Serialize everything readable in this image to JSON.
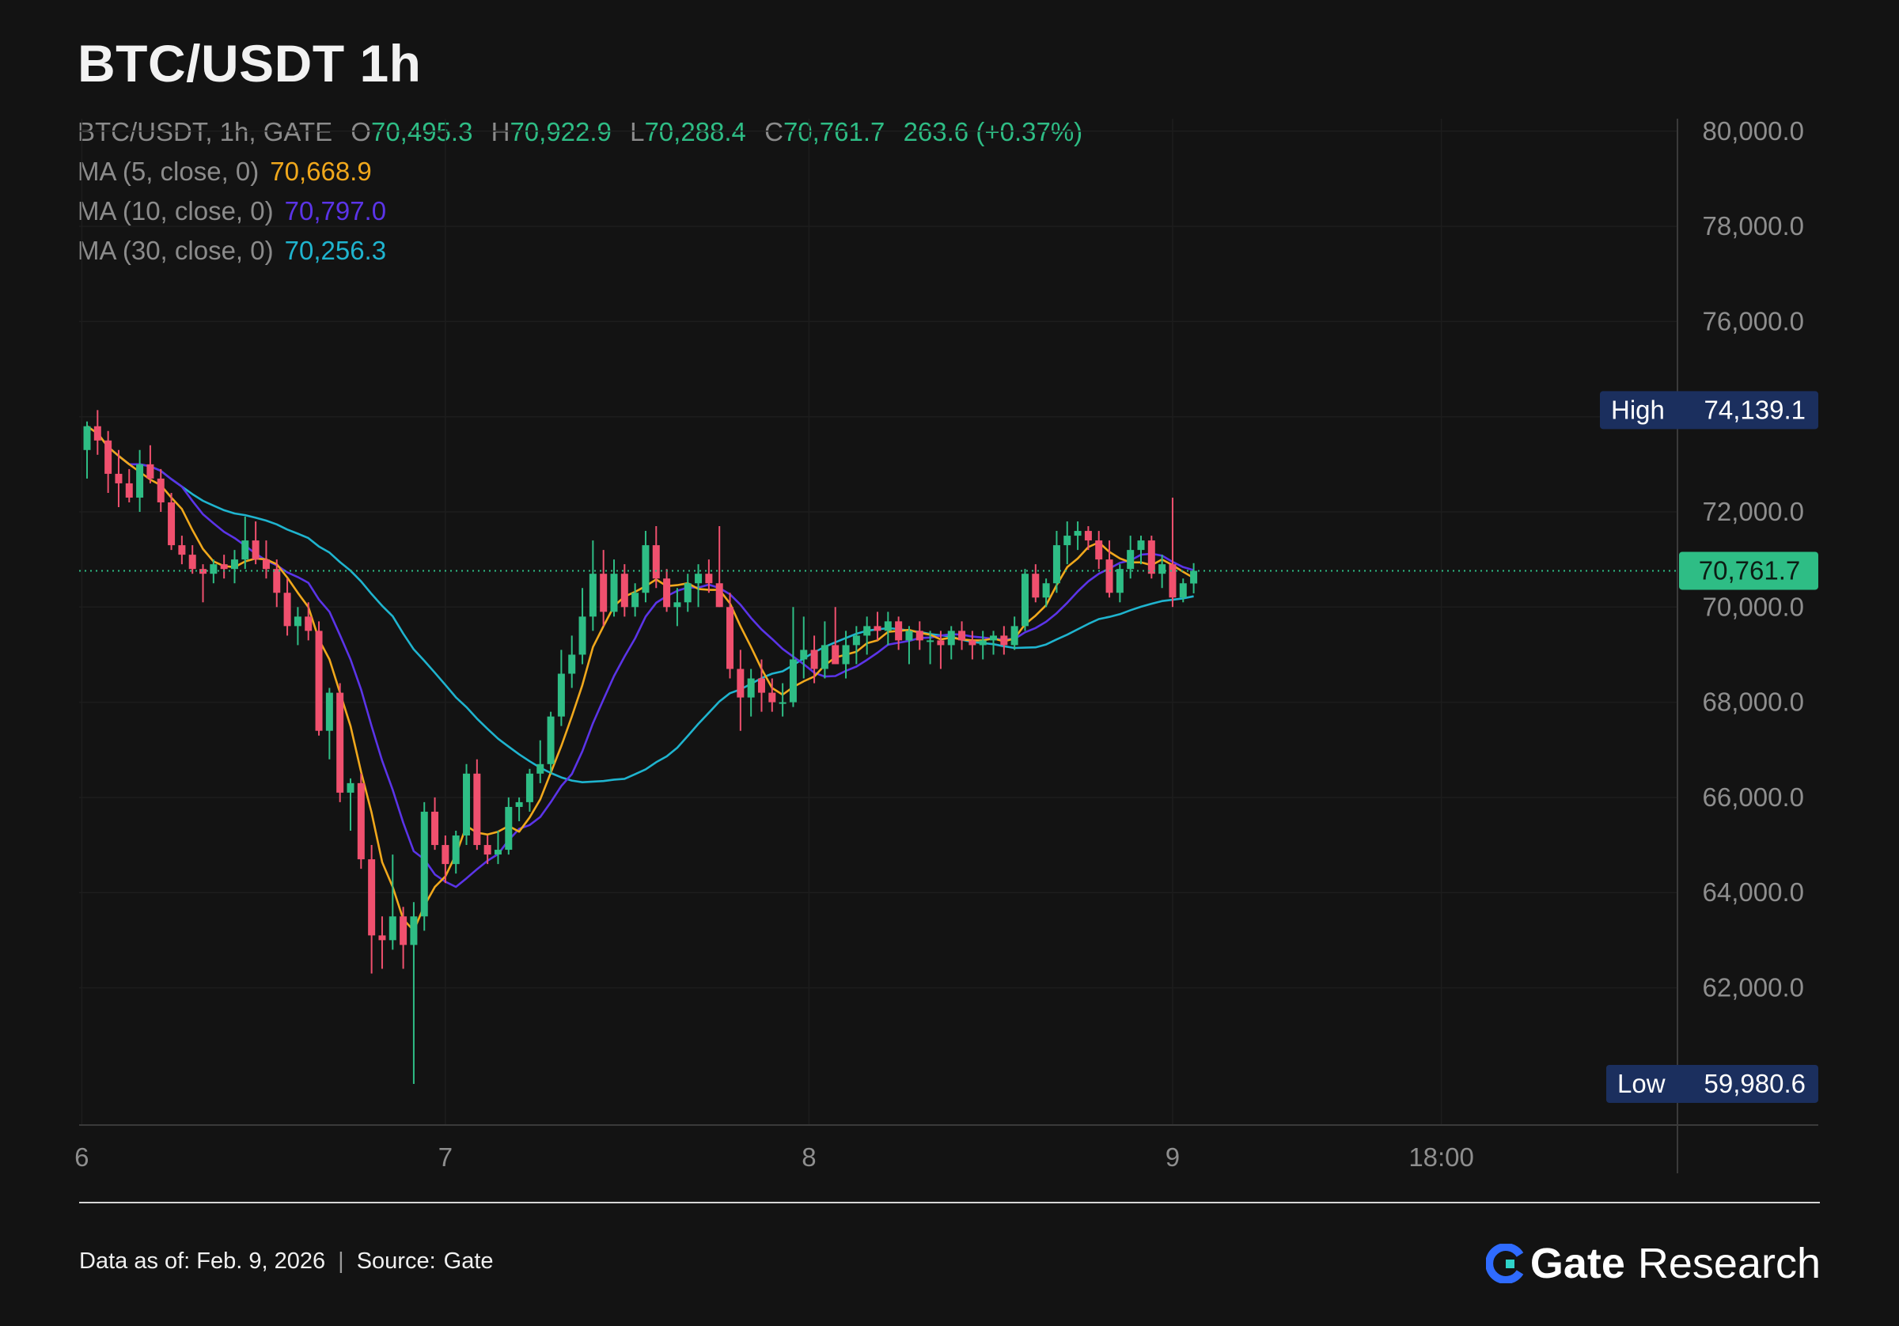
{
  "title": "BTC/USDT 1h",
  "legend": {
    "symbol": "BTC/USDT, 1h, GATE",
    "open_label": "O",
    "open_value": "70,495.3",
    "high_label": "H",
    "high_value": "70,922.9",
    "low_label": "L",
    "low_value": "70,288.4",
    "close_label": "C",
    "close_value": "70,761.7",
    "change": "263.6 (+0.37%)",
    "ma5_label": "MA (5, close, 0)",
    "ma5_value": "70,668.9",
    "ma10_label": "MA (10, close, 0)",
    "ma10_value": "70,797.0",
    "ma30_label": "MA (30, close, 0)",
    "ma30_value": "70,256.3"
  },
  "colors": {
    "up": "#2ebd85",
    "down": "#f0506e",
    "ma5": "#f0a81c",
    "ma10": "#5b34e8",
    "ma30": "#1fb4cf",
    "marker_bg": "#1b2f5e",
    "price_tag": "#2ebd85"
  },
  "markers": {
    "high_label": "High",
    "high_value": "74,139.1",
    "low_label": "Low",
    "low_value": "59,980.6",
    "last_price": "70,761.7"
  },
  "footer": {
    "data_as_of": "Data as of: Feb. 9, 2026",
    "source_label": "Source:",
    "source_value": "Gate",
    "brand": "Gate",
    "brand_sub": "Research"
  },
  "chart_data": {
    "type": "candlestick",
    "interval": "1h",
    "ylim": [
      59000,
      81000
    ],
    "y_ticks": [
      62000,
      64000,
      66000,
      68000,
      70000,
      72000,
      74000,
      76000,
      78000,
      80000
    ],
    "y_tick_labels": [
      "62,000.0",
      "64,000.0",
      "66,000.0",
      "68,000.0",
      "70,000.0",
      "72,000.0",
      "74,000.0",
      "76,000.0",
      "78,000.0",
      "80,000.0"
    ],
    "x_tick_labels": [
      "6",
      "7",
      "8",
      "9",
      "18:00"
    ],
    "x_tick_positions": [
      -0.5,
      34,
      68.5,
      103,
      128.5
    ],
    "high": 74139.1,
    "low": 59980.6,
    "last_close": 70761.7,
    "candles": [
      [
        73300,
        73900,
        72700,
        73800
      ],
      [
        73800,
        74139.1,
        73200,
        73500
      ],
      [
        73500,
        73700,
        72400,
        72800
      ],
      [
        72800,
        73300,
        72100,
        72600
      ],
      [
        72600,
        72900,
        72200,
        72300
      ],
      [
        72300,
        73300,
        72000,
        73000
      ],
      [
        73000,
        73400,
        72600,
        72700
      ],
      [
        72700,
        72900,
        72000,
        72200
      ],
      [
        72200,
        72400,
        71200,
        71300
      ],
      [
        71300,
        71500,
        70900,
        71100
      ],
      [
        71100,
        71300,
        70700,
        70800
      ],
      [
        70800,
        70900,
        70100,
        70700
      ],
      [
        70700,
        71000,
        70500,
        70900
      ],
      [
        70900,
        71100,
        70600,
        70800
      ],
      [
        70800,
        71200,
        70500,
        71000
      ],
      [
        71000,
        71900,
        70800,
        71400
      ],
      [
        71400,
        71800,
        70900,
        71000
      ],
      [
        71000,
        71400,
        70600,
        70800
      ],
      [
        70800,
        71000,
        70000,
        70300
      ],
      [
        70300,
        70600,
        69400,
        69600
      ],
      [
        69600,
        70000,
        69200,
        69800
      ],
      [
        69800,
        70100,
        69300,
        69500
      ],
      [
        69500,
        69700,
        67300,
        67400
      ],
      [
        67400,
        68300,
        66800,
        68200
      ],
      [
        68200,
        68400,
        65900,
        66100
      ],
      [
        66100,
        66400,
        65300,
        66300
      ],
      [
        66300,
        66500,
        64500,
        64700
      ],
      [
        64700,
        65000,
        62300,
        63100
      ],
      [
        63100,
        63500,
        62400,
        63000
      ],
      [
        63000,
        64800,
        62800,
        63500
      ],
      [
        63500,
        63700,
        62400,
        62900
      ],
      [
        62900,
        63800,
        59980.6,
        63500
      ],
      [
        63500,
        65900,
        63200,
        65700
      ],
      [
        65700,
        66000,
        64900,
        65000
      ],
      [
        65000,
        65200,
        64200,
        64600
      ],
      [
        64600,
        65300,
        64400,
        65200
      ],
      [
        65200,
        66700,
        65000,
        66500
      ],
      [
        66500,
        66800,
        64900,
        65000
      ],
      [
        65000,
        65200,
        64600,
        64800
      ],
      [
        64800,
        65300,
        64600,
        64900
      ],
      [
        64900,
        66000,
        64800,
        65800
      ],
      [
        65800,
        66000,
        65500,
        65900
      ],
      [
        65900,
        66600,
        65700,
        66500
      ],
      [
        66500,
        67200,
        66300,
        66700
      ],
      [
        66700,
        67800,
        66500,
        67700
      ],
      [
        67700,
        69100,
        67500,
        68600
      ],
      [
        68600,
        69400,
        68300,
        69000
      ],
      [
        69000,
        70400,
        68800,
        69800
      ],
      [
        69800,
        71400,
        69500,
        70700
      ],
      [
        70700,
        71200,
        69600,
        69900
      ],
      [
        69900,
        71000,
        69800,
        70700
      ],
      [
        70700,
        70900,
        69800,
        70000
      ],
      [
        70000,
        70500,
        69800,
        70300
      ],
      [
        70300,
        71600,
        70100,
        71300
      ],
      [
        71300,
        71700,
        70400,
        70600
      ],
      [
        70600,
        70800,
        69900,
        70000
      ],
      [
        70000,
        70400,
        69600,
        70100
      ],
      [
        70100,
        70700,
        69900,
        70500
      ],
      [
        70500,
        70900,
        70000,
        70700
      ],
      [
        70700,
        71000,
        70300,
        70500
      ],
      [
        70500,
        71700,
        70000,
        70000
      ],
      [
        70000,
        70300,
        68500,
        68700
      ],
      [
        68700,
        69100,
        67400,
        68100
      ],
      [
        68100,
        68700,
        67700,
        68500
      ],
      [
        68500,
        68900,
        67800,
        68200
      ],
      [
        68200,
        68500,
        67800,
        68000
      ],
      [
        68000,
        68400,
        67700,
        68000
      ],
      [
        68000,
        70000,
        67900,
        68900
      ],
      [
        68900,
        69800,
        68500,
        69100
      ],
      [
        69100,
        69400,
        68400,
        68700
      ],
      [
        68700,
        69700,
        68500,
        69200
      ],
      [
        69200,
        70000,
        68800,
        68800
      ],
      [
        68800,
        69500,
        68500,
        69200
      ],
      [
        69200,
        69600,
        68800,
        69400
      ],
      [
        69400,
        69800,
        69000,
        69600
      ],
      [
        69600,
        69900,
        69300,
        69500
      ],
      [
        69500,
        69900,
        69200,
        69700
      ],
      [
        69700,
        69800,
        69100,
        69300
      ],
      [
        69300,
        69600,
        68800,
        69500
      ],
      [
        69500,
        69700,
        69100,
        69300
      ],
      [
        69300,
        69500,
        68800,
        69300
      ],
      [
        69300,
        69500,
        68700,
        69200
      ],
      [
        69200,
        69600,
        68900,
        69500
      ],
      [
        69500,
        69700,
        69100,
        69300
      ],
      [
        69300,
        69500,
        68900,
        69200
      ],
      [
        69200,
        69500,
        68900,
        69300
      ],
      [
        69300,
        69500,
        69000,
        69400
      ],
      [
        69400,
        69600,
        69000,
        69200
      ],
      [
        69200,
        69800,
        69100,
        69600
      ],
      [
        69600,
        70800,
        69500,
        70700
      ],
      [
        70700,
        70900,
        70100,
        70200
      ],
      [
        70200,
        70600,
        70000,
        70500
      ],
      [
        70500,
        71600,
        70300,
        71300
      ],
      [
        71300,
        71800,
        70900,
        71500
      ],
      [
        71500,
        71800,
        71200,
        71600
      ],
      [
        71600,
        71700,
        71200,
        71400
      ],
      [
        71400,
        71600,
        70800,
        71000
      ],
      [
        71000,
        71400,
        70200,
        70300
      ],
      [
        70300,
        70900,
        70100,
        70800
      ],
      [
        70800,
        71500,
        70600,
        71200
      ],
      [
        71200,
        71500,
        70900,
        71400
      ],
      [
        71400,
        71500,
        70600,
        70700
      ],
      [
        70700,
        71100,
        70400,
        70900
      ],
      [
        70900,
        72300,
        70000,
        70200
      ],
      [
        70200,
        70600,
        70100,
        70500
      ],
      [
        70495.3,
        70922.9,
        70288.4,
        70761.7
      ]
    ]
  }
}
